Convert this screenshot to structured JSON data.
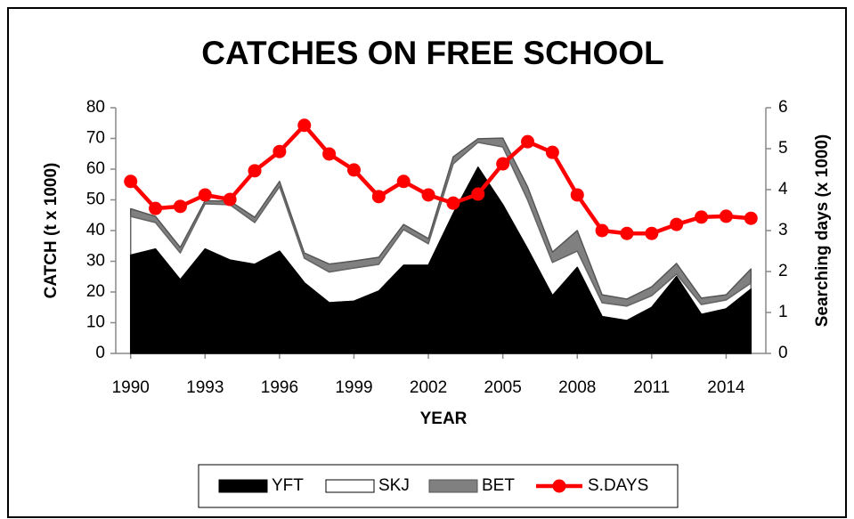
{
  "chart_data": {
    "type": "area",
    "title": "CATCHES ON FREE SCHOOL",
    "x_label": "YEAR",
    "y_label": "CATCH (t x 1000)",
    "y2_label": "Searching days (x 1000)",
    "x": [
      1990,
      1991,
      1992,
      1993,
      1994,
      1995,
      1996,
      1997,
      1998,
      1999,
      2000,
      2001,
      2002,
      2003,
      2004,
      2005,
      2006,
      2007,
      2008,
      2009,
      2010,
      2011,
      2012,
      2013,
      2014,
      2015
    ],
    "xlim": [
      1989.4,
      2015.6
    ],
    "xticks": [
      1990,
      1993,
      1996,
      1999,
      2002,
      2005,
      2008,
      2011,
      2014
    ],
    "ylim": [
      0,
      80
    ],
    "yticks": [
      0,
      10,
      20,
      30,
      40,
      50,
      60,
      70,
      80
    ],
    "y2lim": [
      0,
      6
    ],
    "y2ticks": [
      0,
      1,
      2,
      3,
      4,
      5,
      6
    ],
    "legend": "bottom",
    "series": [
      {
        "name": "YFT",
        "color": "#000000",
        "values": [
          32,
          34,
          24,
          34,
          30.4,
          29,
          33.3,
          23,
          16.5,
          17,
          20.3,
          28.7,
          28.7,
          45.5,
          60.6,
          48.4,
          34,
          18.8,
          28,
          12,
          10.7,
          15,
          25,
          12.7,
          14.5,
          20.9
        ]
      },
      {
        "name": "SKJ",
        "color": "#ffffff",
        "values": [
          12.6,
          8.6,
          8.7,
          14.7,
          18,
          13.6,
          21,
          8,
          10,
          10.8,
          8.7,
          11.6,
          7,
          16.2,
          8.1,
          18.8,
          15.9,
          10.8,
          5.3,
          4.5,
          4.7,
          3.8,
          0.8,
          3.2,
          2.9,
          2
        ]
      },
      {
        "name": "BET",
        "color": "#808080",
        "values": [
          2.5,
          2,
          1.8,
          1,
          1.2,
          1.7,
          1.7,
          1.7,
          2.6,
          2.3,
          2.3,
          1.7,
          1.7,
          2.3,
          1.2,
          2.9,
          4.3,
          3.4,
          6.7,
          2.6,
          2.3,
          2.9,
          3.5,
          2.1,
          1.7,
          4.6
        ]
      },
      {
        "name": "S.DAYS",
        "color": "#ff0000",
        "type": "line",
        "axis": "y2",
        "values": [
          4.2,
          3.54,
          3.59,
          3.87,
          3.76,
          4.46,
          4.93,
          5.57,
          4.87,
          4.48,
          3.83,
          4.2,
          3.87,
          3.67,
          3.89,
          4.63,
          5.17,
          4.91,
          3.87,
          3.0,
          2.93,
          2.93,
          3.15,
          3.33,
          3.35,
          3.3
        ]
      }
    ]
  }
}
